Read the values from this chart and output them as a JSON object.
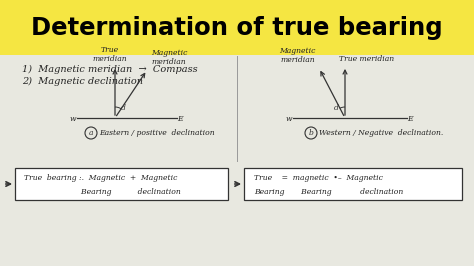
{
  "title": "Determination of true bearing",
  "title_bg": "#F5E642",
  "title_color": "#000000",
  "bg_color": "#E8E8E0",
  "point1": "1)  Magnetic meridian  →  Compass",
  "point2": "2)  Magnetic declination"
}
